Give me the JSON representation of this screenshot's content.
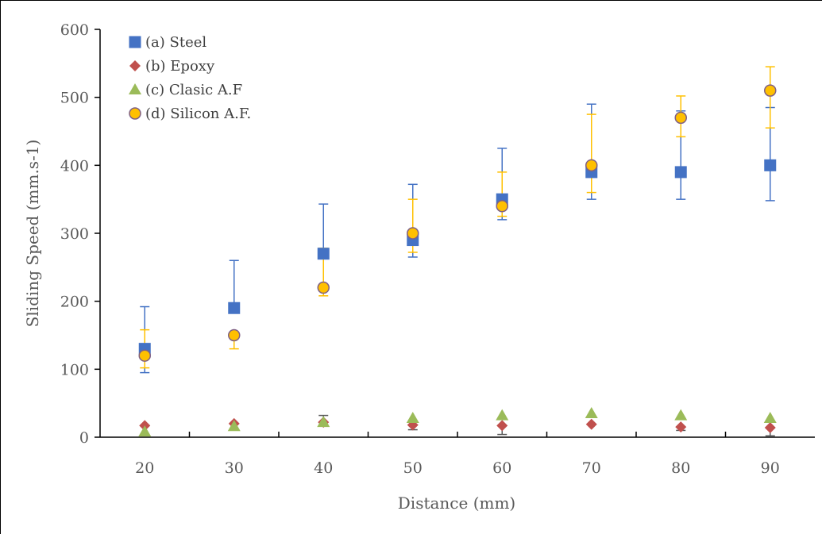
{
  "chart_data": {
    "type": "scatter",
    "title": "",
    "xlabel": "Distance (mm)",
    "ylabel": "Sliding Speed (mm.s-1)",
    "categories": [
      "20",
      "30",
      "40",
      "50",
      "60",
      "70",
      "80",
      "90"
    ],
    "x": [
      20,
      30,
      40,
      50,
      60,
      70,
      80,
      90
    ],
    "ylim": [
      0,
      600
    ],
    "yticks": [
      "0",
      "100",
      "200",
      "300",
      "400",
      "500",
      "600"
    ],
    "grid": false,
    "legend_position": "top-left",
    "series": [
      {
        "name": "(a) Steel",
        "marker": "square",
        "color": "#4472C4",
        "error_color": "#4472C4",
        "values": [
          130,
          190,
          270,
          290,
          350,
          390,
          390,
          400
        ],
        "err_low": [
          35,
          0,
          0,
          25,
          30,
          40,
          40,
          52
        ],
        "err_high": [
          62,
          70,
          73,
          82,
          75,
          100,
          90,
          85
        ]
      },
      {
        "name": "(b) Epoxy",
        "marker": "diamond",
        "color": "#C0504D",
        "error_color": "#595959",
        "values": [
          17,
          20,
          22,
          18,
          17,
          19,
          15,
          14
        ],
        "err_low": [
          0,
          0,
          0,
          7,
          13,
          0,
          5,
          12
        ],
        "err_high": [
          0,
          0,
          10,
          0,
          0,
          0,
          0,
          0
        ]
      },
      {
        "name": "(c) Clasic A.F",
        "marker": "triangle",
        "color": "#9BBB59",
        "error_color": "#595959",
        "values": [
          8,
          16,
          22,
          28,
          32,
          35,
          32,
          28
        ],
        "err_low": [
          0,
          0,
          0,
          0,
          0,
          0,
          0,
          0
        ],
        "err_high": [
          0,
          0,
          0,
          0,
          0,
          0,
          0,
          0
        ]
      },
      {
        "name": "(d) Silicon A.F.",
        "marker": "circle",
        "color": "#FFC000",
        "stroke": "#7F6084",
        "error_color": "#FFC000",
        "values": [
          120,
          150,
          220,
          300,
          340,
          400,
          470,
          510
        ],
        "err_low": [
          18,
          20,
          12,
          28,
          15,
          40,
          28,
          55
        ],
        "err_high": [
          38,
          0,
          58,
          50,
          50,
          75,
          32,
          35
        ]
      }
    ]
  }
}
